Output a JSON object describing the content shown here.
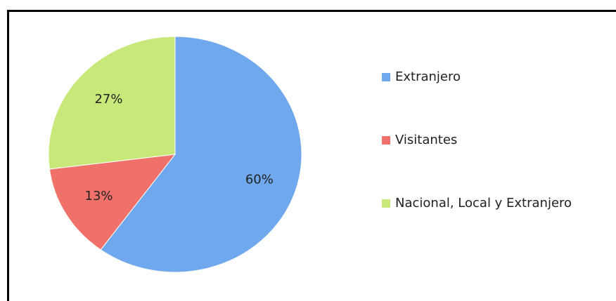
{
  "chart_data": {
    "type": "pie",
    "categories": [
      "Extranjero",
      "Visitantes",
      "Nacional, Local y Extranjero"
    ],
    "values": [
      60,
      13,
      27
    ],
    "value_labels": [
      "60%",
      "13%",
      "27%"
    ],
    "colors": [
      "#6fa8ec",
      "#f0716a",
      "#c8e87a"
    ],
    "legend": "right"
  }
}
